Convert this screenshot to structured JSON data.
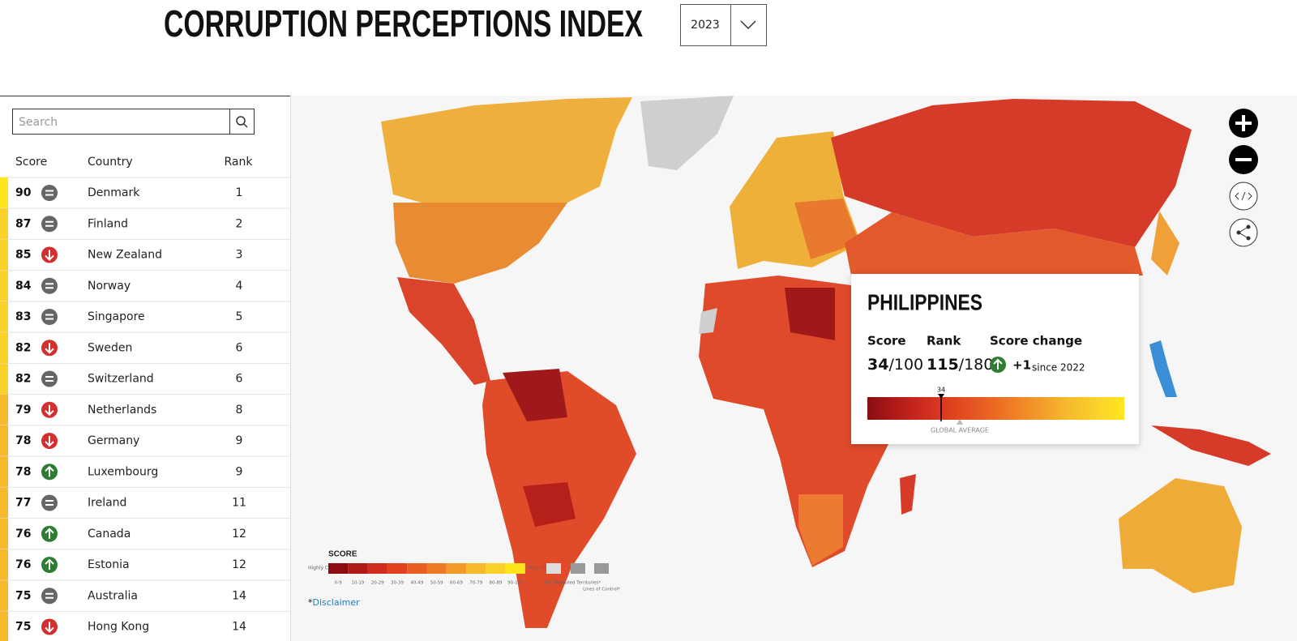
{
  "header": {
    "title": "CORRUPTION PERCEPTIONS INDEX",
    "year": "2023"
  },
  "sidebar": {
    "search_placeholder": "Search",
    "columns": {
      "score": "Score",
      "country": "Country",
      "rank": "Rank"
    },
    "rows": [
      {
        "score": 90,
        "trend": "same",
        "country": "Denmark",
        "rank": 1
      },
      {
        "score": 87,
        "trend": "same",
        "country": "Finland",
        "rank": 2
      },
      {
        "score": 85,
        "trend": "down",
        "country": "New Zealand",
        "rank": 3
      },
      {
        "score": 84,
        "trend": "same",
        "country": "Norway",
        "rank": 4
      },
      {
        "score": 83,
        "trend": "same",
        "country": "Singapore",
        "rank": 5
      },
      {
        "score": 82,
        "trend": "down",
        "country": "Sweden",
        "rank": 6
      },
      {
        "score": 82,
        "trend": "same",
        "country": "Switzerland",
        "rank": 6
      },
      {
        "score": 79,
        "trend": "down",
        "country": "Netherlands",
        "rank": 8
      },
      {
        "score": 78,
        "trend": "down",
        "country": "Germany",
        "rank": 9
      },
      {
        "score": 78,
        "trend": "up",
        "country": "Luxembourg",
        "rank": 9
      },
      {
        "score": 77,
        "trend": "same",
        "country": "Ireland",
        "rank": 11
      },
      {
        "score": 76,
        "trend": "up",
        "country": "Canada",
        "rank": 12
      },
      {
        "score": 76,
        "trend": "up",
        "country": "Estonia",
        "rank": 12
      },
      {
        "score": 75,
        "trend": "same",
        "country": "Australia",
        "rank": 14
      },
      {
        "score": 75,
        "trend": "down",
        "country": "Hong Kong",
        "rank": 14
      }
    ]
  },
  "tooltip": {
    "country": "PHILIPPINES",
    "score_label": "Score",
    "score": 34,
    "score_of": "/100",
    "rank_label": "Rank",
    "rank": 115,
    "rank_of": "/180",
    "change_label": "Score change",
    "change": "+1",
    "since": "since 2022",
    "average_label": "GLOBAL AVERAGE"
  },
  "legend": {
    "title": "SCORE",
    "low": "Highly Corrupt",
    "high": "Very Clean",
    "ranges": [
      "0-9",
      "10-19",
      "20-29",
      "30-39",
      "40-49",
      "50-59",
      "60-69",
      "70-79",
      "80-89",
      "90-100"
    ],
    "colors": [
      "#8b0d11",
      "#b01b17",
      "#cf2c20",
      "#e0421f",
      "#e85d22",
      "#ef7a25",
      "#f29a2a",
      "#f6b92c",
      "#fad12a",
      "#ffe61c"
    ],
    "no_data": "No Data",
    "disputed": "Disputed Territories*",
    "lines": "Lines of Control*"
  },
  "disclaimer_prefix": "*",
  "disclaimer": "Disclaimer"
}
